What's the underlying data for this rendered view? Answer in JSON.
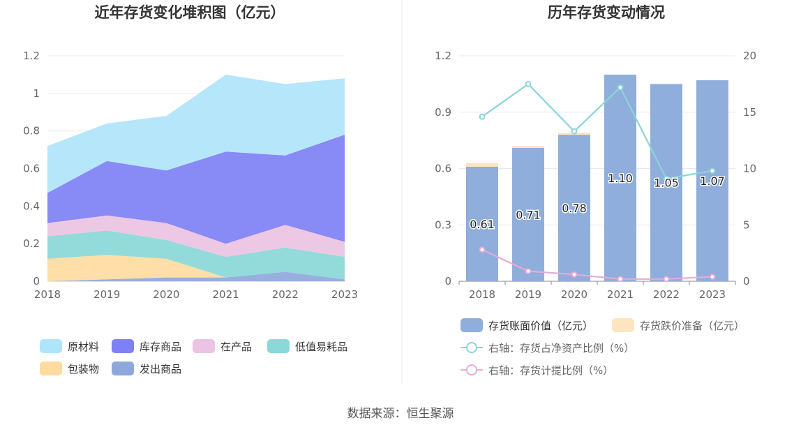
{
  "source_text": "数据来源：恒生聚源",
  "chart_data": [
    {
      "type": "area",
      "stacked": true,
      "title": "近年存货变化堆积图（亿元）",
      "x": [
        "2018",
        "2019",
        "2020",
        "2021",
        "2022",
        "2023"
      ],
      "ylim": [
        0,
        1.2
      ],
      "yticks": [
        "0",
        "0.2",
        "0.4",
        "0.6",
        "0.8",
        "1",
        "1.2"
      ],
      "grid": true,
      "legend_position": "bottom",
      "series": [
        {
          "name": "发出商品",
          "color": "#8FA8DB",
          "values": [
            0.0,
            0.01,
            0.02,
            0.02,
            0.05,
            0.01
          ]
        },
        {
          "name": "包装物",
          "color": "#FFDBA0",
          "values": [
            0.12,
            0.13,
            0.1,
            0.0,
            0.0,
            0.0
          ]
        },
        {
          "name": "低值易耗品",
          "color": "#8AD8D8",
          "values": [
            0.12,
            0.13,
            0.1,
            0.11,
            0.13,
            0.12
          ]
        },
        {
          "name": "在产品",
          "color": "#ECC3E2",
          "values": [
            0.07,
            0.08,
            0.09,
            0.07,
            0.12,
            0.08
          ]
        },
        {
          "name": "库存商品",
          "color": "#7E80F5",
          "values": [
            0.16,
            0.29,
            0.28,
            0.49,
            0.37,
            0.57
          ]
        },
        {
          "name": "原材料",
          "color": "#B0E4FA",
          "values": [
            0.25,
            0.2,
            0.29,
            0.41,
            0.38,
            0.3
          ]
        }
      ],
      "legend_order": [
        "原材料",
        "库存商品",
        "在产品",
        "低值易耗品",
        "包装物",
        "发出商品"
      ]
    },
    {
      "type": "bar",
      "stacked": true,
      "title": "历年存货变动情况",
      "x": [
        "2018",
        "2019",
        "2020",
        "2021",
        "2022",
        "2023"
      ],
      "ylim_left": [
        0,
        1.2
      ],
      "yticks_left": [
        "0",
        "0.3",
        "0.6",
        "0.9",
        "1.2"
      ],
      "ylim_right": [
        0,
        20
      ],
      "yticks_right": [
        "0",
        "5",
        "10",
        "15",
        "20"
      ],
      "grid": true,
      "legend_position": "bottom",
      "series": [
        {
          "name": "存货账面价值（亿元）",
          "kind": "bar",
          "axis": "left",
          "color": "#8FAEDB",
          "values": [
            0.61,
            0.71,
            0.78,
            1.1,
            1.05,
            1.07
          ],
          "labels": [
            "0.61",
            "0.71",
            "0.78",
            "1.10",
            "1.05",
            "1.07"
          ]
        },
        {
          "name": "存货跌价准备（亿元）",
          "kind": "bar",
          "axis": "left",
          "color": "#FFE5BF",
          "values": [
            0.02,
            0.01,
            0.01,
            0.0,
            0.0,
            0.0
          ]
        },
        {
          "name": "右轴：存货占净资产比例（%）",
          "kind": "line",
          "axis": "right",
          "color": "#8AD5D8",
          "values": [
            14.6,
            17.5,
            13.3,
            17.2,
            9.1,
            9.8
          ]
        },
        {
          "name": "右轴：存货计提比例（%）",
          "kind": "line",
          "axis": "right",
          "color": "#E8AAD6",
          "values": [
            2.8,
            0.9,
            0.6,
            0.2,
            0.2,
            0.4
          ]
        }
      ]
    }
  ]
}
